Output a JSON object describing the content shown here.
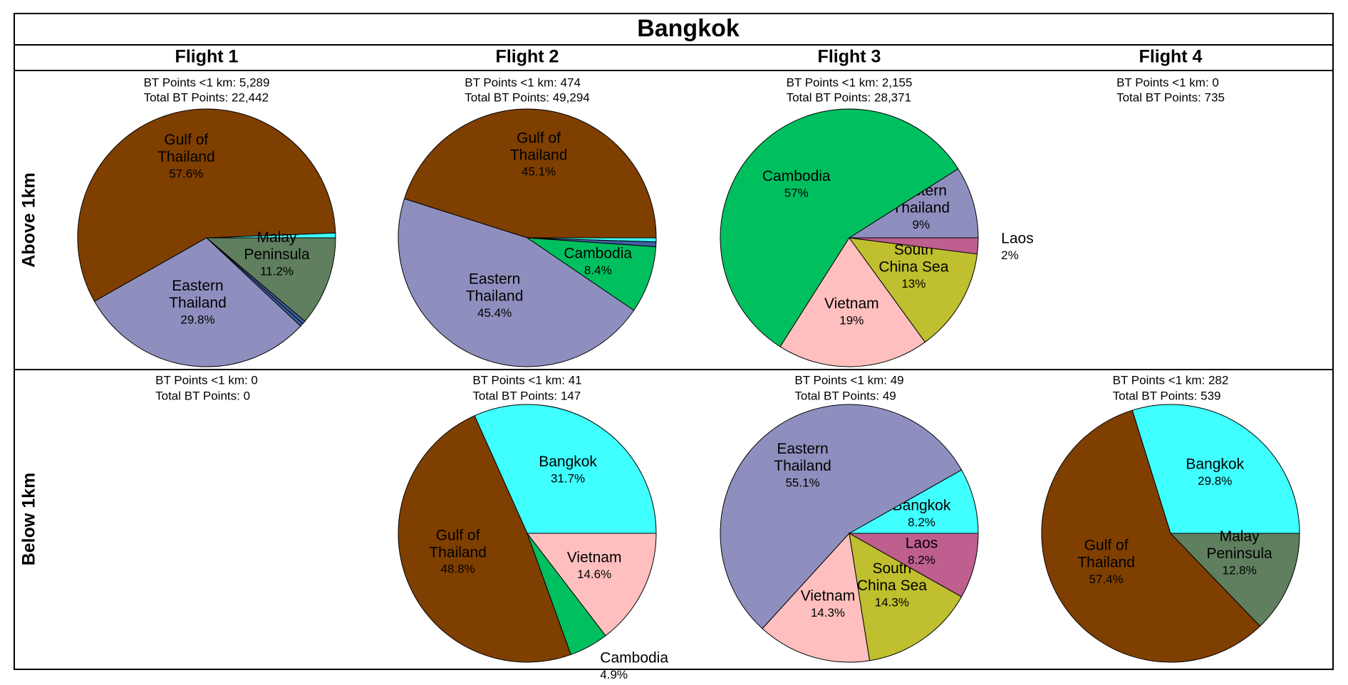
{
  "title": "Bangkok",
  "columns": [
    "Flight 1",
    "Flight 2",
    "Flight 3",
    "Flight 4"
  ],
  "rows": [
    "Above 1km",
    "Below 1km"
  ],
  "chart_data": [
    {
      "type": "pie",
      "annotations": [
        "BT Points <1 km: 5,289",
        "Total BT Points: 22,442"
      ],
      "categories": [
        null,
        "Gulf of Thailand",
        "Eastern Thailand",
        null,
        null,
        "Malay Peninsula"
      ],
      "values": [
        0.6,
        57.6,
        29.8,
        0.4,
        0.4,
        11.2
      ],
      "value_labels": [
        null,
        "57.6%",
        "29.8%",
        null,
        null,
        "11.2%"
      ],
      "colors": [
        "#3fffff",
        "#7f3f00",
        "#8f8fbf",
        "#40609f",
        "#40609f",
        "#5f7f5f"
      ]
    },
    {
      "type": "pie",
      "annotations": [
        "BT Points <1 km: 474",
        "Total BT Points: 49,294"
      ],
      "categories": [
        "Gulf of Thailand",
        "Eastern Thailand",
        "Cambodia",
        null,
        null
      ],
      "values": [
        45.1,
        45.4,
        8.4,
        0.6,
        0.5
      ],
      "value_labels": [
        "45.1%",
        "45.4%",
        "8.4%",
        null,
        null
      ],
      "colors": [
        "#7f3f00",
        "#8f8fbf",
        "#00bf5f",
        "#40609f",
        "#3fffff"
      ]
    },
    {
      "type": "pie",
      "annotations": [
        "BT Points <1 km: 2,155",
        "Total BT Points: 28,371"
      ],
      "categories": [
        "Eastern Thailand",
        "Cambodia",
        "Vietnam",
        "South China Sea",
        "Laos"
      ],
      "values": [
        9,
        57,
        19,
        13,
        2
      ],
      "value_labels": [
        "9%",
        "57%",
        "19%",
        "13%",
        "2%"
      ],
      "colors": [
        "#8f8fbf",
        "#00bf5f",
        "#ffbfbf",
        "#bfbf2f",
        "#bf5f8f"
      ]
    },
    {
      "type": "pie",
      "annotations": [
        "BT Points <1 km: 0",
        "Total BT Points: 735"
      ],
      "categories": [],
      "values": [],
      "value_labels": [],
      "colors": []
    },
    {
      "type": "pie",
      "annotations": [
        "BT Points <1 km: 0",
        "Total BT Points: 0"
      ],
      "categories": [],
      "values": [],
      "value_labels": [],
      "colors": []
    },
    {
      "type": "pie",
      "annotations": [
        "BT Points <1 km: 41",
        "Total BT Points: 147"
      ],
      "categories": [
        "Bangkok",
        "Gulf of Thailand",
        "Cambodia",
        "Vietnam"
      ],
      "values": [
        31.7,
        48.8,
        4.9,
        14.6
      ],
      "value_labels": [
        "31.7%",
        "48.8%",
        "4.9%",
        "14.6%"
      ],
      "colors": [
        "#3fffff",
        "#7f3f00",
        "#00bf5f",
        "#ffbfbf"
      ]
    },
    {
      "type": "pie",
      "annotations": [
        "BT Points <1 km: 49",
        "Total BT Points: 49"
      ],
      "categories": [
        "Bangkok",
        "Eastern Thailand",
        "Vietnam",
        "South China Sea",
        "Laos"
      ],
      "values": [
        8.2,
        55.1,
        14.3,
        14.3,
        8.2
      ],
      "value_labels": [
        "8.2%",
        "55.1%",
        "14.3%",
        "14.3%",
        "8.2%"
      ],
      "colors": [
        "#3fffff",
        "#8f8fbf",
        "#ffbfbf",
        "#bfbf2f",
        "#bf5f8f"
      ]
    },
    {
      "type": "pie",
      "annotations": [
        "BT Points <1 km: 282",
        "Total BT Points: 539"
      ],
      "categories": [
        "Bangkok",
        "Gulf of Thailand",
        "Malay Peninsula"
      ],
      "values": [
        29.8,
        57.4,
        12.8
      ],
      "value_labels": [
        "29.8%",
        "57.4%",
        "12.8%"
      ],
      "colors": [
        "#3fffff",
        "#7f3f00",
        "#5f7f5f"
      ]
    }
  ]
}
